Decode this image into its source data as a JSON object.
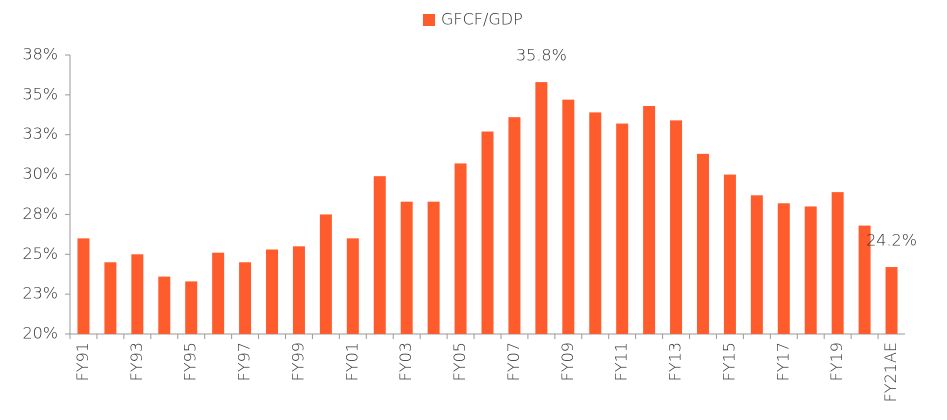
{
  "chart_data": {
    "type": "bar",
    "categories": [
      "FY91",
      null,
      "FY93",
      null,
      "FY95",
      null,
      "FY97",
      null,
      "FY99",
      null,
      "FY01",
      null,
      "FY03",
      null,
      "FY05",
      null,
      "FY07",
      null,
      "FY09",
      null,
      "FY11",
      null,
      "FY13",
      null,
      "FY15",
      null,
      "FY17",
      null,
      "FY19",
      null,
      "FY21AE"
    ],
    "series": [
      {
        "name": "GFCF/GDP",
        "color": "#ff5c2e",
        "values": [
          26.0,
          24.5,
          25.0,
          23.6,
          23.3,
          25.1,
          24.5,
          25.3,
          25.5,
          27.5,
          26.0,
          29.9,
          28.3,
          28.3,
          30.7,
          32.7,
          33.6,
          35.8,
          34.7,
          33.9,
          33.2,
          34.3,
          33.4,
          31.3,
          30.0,
          28.7,
          28.2,
          28.0,
          28.9,
          26.8,
          24.2
        ],
        "value_labels": [
          null,
          null,
          null,
          null,
          null,
          null,
          null,
          null,
          null,
          null,
          null,
          null,
          null,
          null,
          null,
          null,
          null,
          "35.8%",
          null,
          null,
          null,
          null,
          null,
          null,
          null,
          null,
          null,
          null,
          null,
          null,
          "24.2%"
        ]
      }
    ],
    "ylim": [
      20,
      37.5
    ],
    "yticks": [
      {
        "value": 20,
        "label": "20%"
      },
      {
        "value": 22.5,
        "label": "23%"
      },
      {
        "value": 25,
        "label": "25%"
      },
      {
        "value": 27.5,
        "label": "28%"
      },
      {
        "value": 30,
        "label": "30%"
      },
      {
        "value": 32.5,
        "label": "33%"
      },
      {
        "value": 35,
        "label": "35%"
      },
      {
        "value": 37.5,
        "label": "38%"
      }
    ],
    "grid": false,
    "legend": "top"
  }
}
